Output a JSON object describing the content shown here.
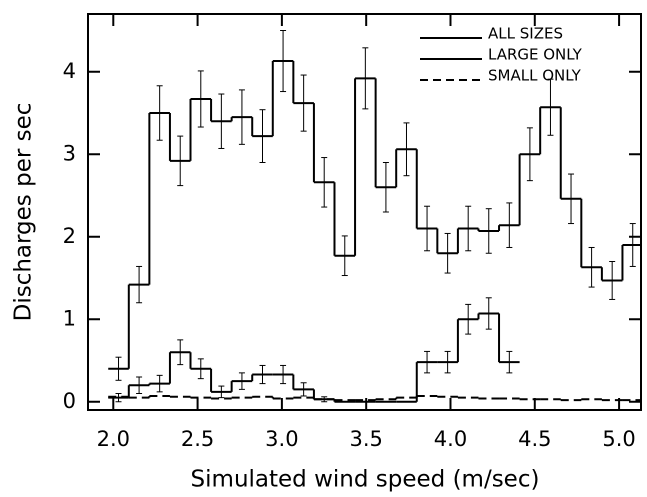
{
  "chart_data": {
    "type": "histogram",
    "xlabel": "Simulated wind speed  (m/sec)",
    "ylabel": "Discharges per sec",
    "xlim": [
      1.85,
      5.13
    ],
    "ylim": [
      -0.1,
      4.7
    ],
    "xticks": [
      {
        "value": 2,
        "label": "2.0"
      },
      {
        "value": 2.5,
        "label": "2.5"
      },
      {
        "value": 3,
        "label": "3.0"
      },
      {
        "value": 3.5,
        "label": "3.5"
      },
      {
        "value": 4,
        "label": "4.0"
      },
      {
        "value": 4.5,
        "label": "4.5"
      },
      {
        "value": 5,
        "label": "5.0"
      }
    ],
    "yticks": [
      0,
      1,
      2,
      3,
      4
    ],
    "bins": [
      1.97,
      2.092,
      2.214,
      2.336,
      2.458,
      2.58,
      2.702,
      2.824,
      2.946,
      3.068,
      3.19,
      3.312,
      3.434,
      3.556,
      3.678,
      3.8,
      3.922,
      4.044,
      4.166,
      4.288,
      4.41,
      4.532,
      4.654,
      4.776,
      4.898,
      5.02,
      5.142
    ],
    "legend": "upper right",
    "series": [
      {
        "name": "ALL SIZES",
        "color": "#000000",
        "dashed": false,
        "values": [
          0.4,
          1.42,
          3.5,
          2.92,
          3.67,
          3.4,
          3.45,
          3.22,
          4.13,
          3.62,
          2.66,
          1.77,
          3.92,
          2.6,
          3.06,
          2.1,
          1.8,
          2.1,
          2.07,
          2.14,
          3.0,
          3.57,
          2.46,
          1.63,
          1.47,
          1.9
        ],
        "errors": [
          0.14,
          0.22,
          0.33,
          0.3,
          0.34,
          0.33,
          0.33,
          0.32,
          0.37,
          0.34,
          0.3,
          0.24,
          0.37,
          0.3,
          0.32,
          0.27,
          0.24,
          0.27,
          0.27,
          0.27,
          0.32,
          0.34,
          0.3,
          0.24,
          0.23,
          0.26
        ]
      },
      {
        "name": "LARGE ONLY",
        "color": "#000000",
        "dashed": false,
        "values": [
          0.05,
          0.2,
          0.22,
          0.6,
          0.4,
          0.12,
          0.25,
          0.33,
          0.33,
          0.15,
          0.03,
          0,
          0,
          0,
          0,
          0.48,
          0.48,
          1.0,
          1.07,
          0.48,
          null,
          null,
          null,
          null,
          null,
          null
        ],
        "errors": [
          0.05,
          0.1,
          0.1,
          0.15,
          0.12,
          0.07,
          0.1,
          0.11,
          0.11,
          0.08,
          0.03,
          0,
          0,
          0,
          0,
          0.13,
          0.13,
          0.18,
          0.19,
          0.13,
          null,
          null,
          null,
          null,
          null,
          null
        ]
      },
      {
        "name": "SMALL ONLY",
        "color": "#000000",
        "dashed": true,
        "values": [
          0.06,
          0.05,
          0.07,
          0.06,
          0.05,
          0.04,
          0.05,
          0.06,
          0.04,
          0.05,
          0.03,
          0.02,
          0.02,
          0.03,
          0.05,
          0.07,
          0.06,
          0.05,
          0.04,
          0.04,
          0.03,
          0.03,
          0.02,
          0.03,
          0.02,
          0.02
        ]
      }
    ]
  }
}
